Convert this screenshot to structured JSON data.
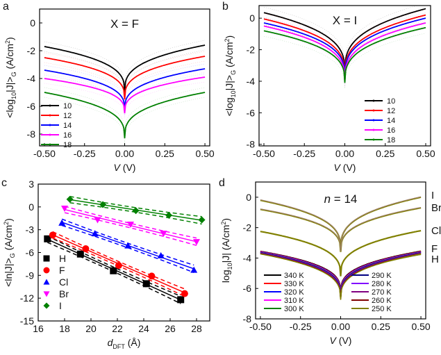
{
  "chart_data": [
    {
      "panel": "a",
      "type": "line",
      "title": "X = F",
      "xlabel": {
        "italic": "V",
        "rest": " (V)"
      },
      "ylabel": {
        "pre": "<log",
        "sub1": "10",
        "mid": "|J|>",
        "sub2": "G",
        "post": " (A/cm",
        "sup": "2",
        "end": ")"
      },
      "xlim": [
        -0.53,
        0.53
      ],
      "ylim": [
        -8.85,
        1
      ],
      "xticks": [
        "-0.50",
        "-0.25",
        "0.00",
        "0.25",
        "0.50"
      ],
      "xtick_values": [
        -0.5,
        -0.25,
        0,
        0.25,
        0.5
      ],
      "yticks": [
        "-8",
        "-6",
        "-4",
        "-2",
        "0"
      ],
      "ytick_values": [
        -8,
        -6,
        -4,
        -2,
        0
      ],
      "legend": "bottom-left",
      "series": [
        {
          "name": "10",
          "color": "#000000",
          "at_minus_0_5": -1.7,
          "at_0": -5.0,
          "at_plus_0_5": -1.6
        },
        {
          "name": "12",
          "color": "#ff0000",
          "at_minus_0_5": -2.5,
          "at_0": -5.5,
          "at_plus_0_5": -2.4
        },
        {
          "name": "14",
          "color": "#0000ff",
          "at_minus_0_5": -3.4,
          "at_0": -6.3,
          "at_plus_0_5": -3.3
        },
        {
          "name": "16",
          "color": "#ff00ff",
          "at_minus_0_5": -4.0,
          "at_0": -6.5,
          "at_plus_0_5": -3.9
        },
        {
          "name": "18",
          "color": "#008000",
          "at_minus_0_5": -5.0,
          "at_0": -8.3,
          "at_plus_0_5": -5.0
        }
      ]
    },
    {
      "panel": "b",
      "type": "line",
      "title": "X = I",
      "xlabel": {
        "italic": "V",
        "rest": " (V)"
      },
      "ylabel": {
        "pre": "<log",
        "sub1": "10",
        "mid": "|J|>",
        "sub2": "G",
        "post": " (A/cm",
        "sup": "2",
        "end": ")"
      },
      "xlim": [
        -0.53,
        0.53
      ],
      "ylim": [
        -8.1,
        0.8
      ],
      "xticks": [
        "-0.50",
        "-0.25",
        "0.00",
        "0.25",
        "0.50"
      ],
      "xtick_values": [
        -0.5,
        -0.25,
        0,
        0.25,
        0.5
      ],
      "yticks": [
        "-8",
        "-6",
        "-4",
        "-2",
        "0"
      ],
      "ytick_values": [
        -8,
        -6,
        -4,
        -2,
        0
      ],
      "legend": "bottom-right",
      "series": [
        {
          "name": "10",
          "color": "#000000",
          "at_minus_0_5": 0.35,
          "at_0": -3.5,
          "at_plus_0_5": 0.6
        },
        {
          "name": "12",
          "color": "#ff0000",
          "at_minus_0_5": -0.05,
          "at_0": -3.7,
          "at_plus_0_5": 0.2
        },
        {
          "name": "14",
          "color": "#0000ff",
          "at_minus_0_5": -0.3,
          "at_0": -3.8,
          "at_plus_0_5": 0.0
        },
        {
          "name": "16",
          "color": "#ff00ff",
          "at_minus_0_5": -0.5,
          "at_0": -4.0,
          "at_plus_0_5": -0.3
        },
        {
          "name": "18",
          "color": "#008000",
          "at_minus_0_5": -0.8,
          "at_0": -4.1,
          "at_plus_0_5": -0.6
        }
      ]
    },
    {
      "panel": "c",
      "type": "scatter",
      "title": "",
      "xlabel": {
        "italic": "d",
        "sub": "DFT",
        "rest": " (Å)"
      },
      "ylabel": {
        "pre": "<ln|J|>",
        "sub2": "G",
        "post": " (A/cm",
        "sup": "2",
        "end": ")"
      },
      "xlim": [
        16,
        29
      ],
      "ylim": [
        -15,
        3
      ],
      "xticks": [
        "16",
        "18",
        "20",
        "22",
        "24",
        "26",
        "28"
      ],
      "xtick_values": [
        16,
        18,
        20,
        22,
        24,
        26,
        28
      ],
      "yticks": [
        "-15",
        "-12",
        "-9",
        "-6",
        "-3",
        "0",
        "3"
      ],
      "ytick_values": [
        -15,
        -12,
        -9,
        -6,
        -3,
        0,
        3
      ],
      "legend": "bottom-left",
      "series": [
        {
          "name": "H",
          "color": "#000000",
          "marker": "square",
          "x": [
            16.7,
            19.2,
            21.7,
            24.2,
            26.8
          ],
          "y": [
            -4.2,
            -6.2,
            -8.4,
            -10.1,
            -12.2
          ]
        },
        {
          "name": "F",
          "color": "#ff0000",
          "marker": "circle",
          "x": [
            17.1,
            19.6,
            22.1,
            24.6,
            27.1
          ],
          "y": [
            -3.7,
            -5.5,
            -7.7,
            -9.1,
            -11.4
          ]
        },
        {
          "name": "Cl",
          "color": "#0000ff",
          "marker": "triangle-up",
          "x": [
            17.8,
            20.3,
            22.8,
            25.3,
            27.8
          ],
          "y": [
            -2.1,
            -3.5,
            -5.1,
            -6.4,
            -8.3
          ]
        },
        {
          "name": "Br",
          "color": "#ff00ff",
          "marker": "triangle-down",
          "x": [
            18.0,
            20.5,
            23.0,
            25.5,
            28.0
          ],
          "y": [
            -0.2,
            -1.7,
            -2.3,
            -3.5,
            -4.6
          ]
        },
        {
          "name": "I",
          "color": "#008000",
          "marker": "diamond",
          "x": [
            18.4,
            20.9,
            23.4,
            25.9,
            28.4
          ],
          "y": [
            1.0,
            0.3,
            -0.5,
            -1.1,
            -1.7
          ]
        }
      ]
    },
    {
      "panel": "d",
      "type": "line",
      "title": {
        "italic": "n",
        "rest": " = 14"
      },
      "xlabel": {
        "italic": "V",
        "rest": " (V)"
      },
      "ylabel": {
        "pre": "log",
        "sub1": "10",
        "mid": "|J|",
        "post": " (A/cm",
        "sup": "2",
        "end": ")"
      },
      "xlim": [
        -0.53,
        0.53
      ],
      "ylim": [
        -8,
        1
      ],
      "xticks": [
        "-0.50",
        "-0.25",
        "0.00",
        "0.25",
        "0.50"
      ],
      "xtick_values": [
        -0.5,
        -0.25,
        0,
        0.25,
        0.5
      ],
      "yticks": [
        "-8",
        "-6",
        "-4",
        "-2",
        "0"
      ],
      "ytick_values": [
        -8,
        -6,
        -4,
        -2,
        0
      ],
      "legend": "bottom",
      "curve_labels": [
        {
          "name": "I",
          "at_minus_0_5": -0.2,
          "at_0": -3.5,
          "at_plus_0_5": 0.0
        },
        {
          "name": "Br",
          "at_minus_0_5": -0.8,
          "at_0": -3.6,
          "at_plus_0_5": -0.7
        },
        {
          "name": "Cl",
          "at_minus_0_5": -2.25,
          "at_0": -5.2,
          "at_plus_0_5": -2.2
        },
        {
          "name": "F",
          "at_minus_0_5": -3.6,
          "at_0": -6.4,
          "at_plus_0_5": -3.55
        },
        {
          "name": "H",
          "at_minus_0_5": -3.7,
          "at_0": -6.6,
          "at_plus_0_5": -3.75
        }
      ],
      "series": [
        {
          "name": "340 K",
          "color": "#000000"
        },
        {
          "name": "330 K",
          "color": "#ff0000"
        },
        {
          "name": "320 K",
          "color": "#0000ff"
        },
        {
          "name": "310 K",
          "color": "#ff00ff"
        },
        {
          "name": "300 K",
          "color": "#008000"
        },
        {
          "name": "290 K",
          "color": "#000080"
        },
        {
          "name": "280 K",
          "color": "#8000ff"
        },
        {
          "name": "270 K",
          "color": "#800080"
        },
        {
          "name": "260 K",
          "color": "#800000"
        },
        {
          "name": "250 K",
          "color": "#808000"
        }
      ]
    }
  ]
}
